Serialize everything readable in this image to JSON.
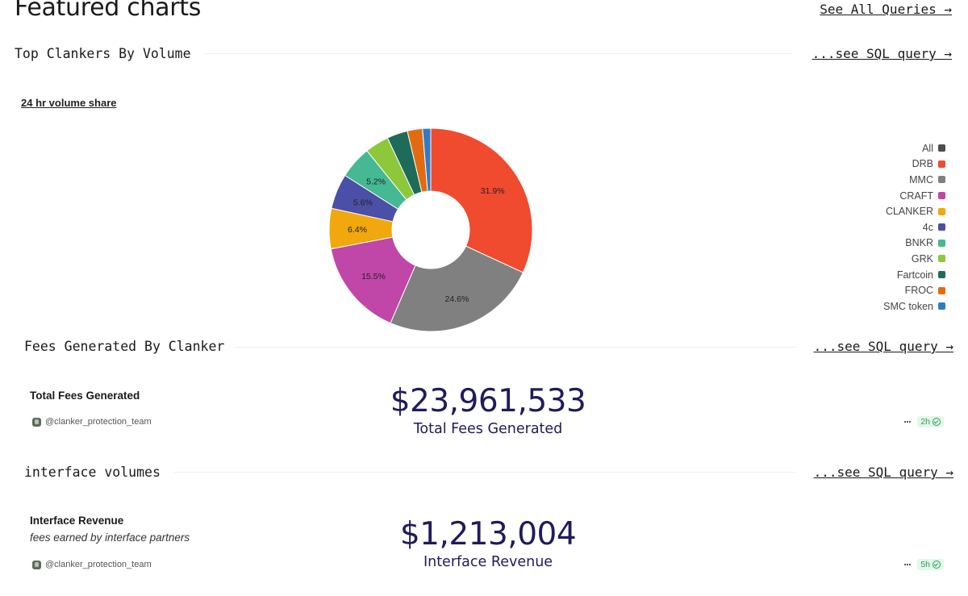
{
  "page": {
    "title": "Featured charts",
    "see_all_label": "See All Queries →"
  },
  "sections": [
    {
      "title": "Top Clankers By Volume",
      "sql_link": "...see SQL query →"
    },
    {
      "title": "Fees Generated By Clanker",
      "sql_link": "...see SQL query →",
      "card": {
        "title": "Total Fees Generated",
        "author": "@clanker_protection_team",
        "value": "$23,961,533",
        "value_label": "Total Fees Generated",
        "badge": "2h",
        "more": "···"
      }
    },
    {
      "title": "interface volumes",
      "sql_link": "...see SQL query →",
      "card": {
        "title": "Interface Revenue",
        "description": "fees earned by interface partners",
        "author": "@clanker_protection_team",
        "value": "$1,213,004",
        "value_label": "Interface Revenue",
        "badge": "5h",
        "more": "···"
      }
    }
  ],
  "chart_data": {
    "type": "pie",
    "title": "24 hr volume share",
    "donut": true,
    "legend_position": "right",
    "categories": [
      "All",
      "DRB",
      "MMC",
      "CRAFT",
      "CLANKER",
      "4c",
      "BNKR",
      "GRK",
      "Fartcoin",
      "FROC",
      "SMC token"
    ],
    "values": [
      0,
      31.9,
      24.6,
      15.5,
      6.4,
      5.6,
      5.2,
      3.8,
      3.3,
      2.4,
      1.3
    ],
    "labels": [
      "",
      "31.9%",
      "24.6%",
      "15.5%",
      "6.4%",
      "5.6%",
      "5.2%",
      "",
      "",
      "",
      ""
    ],
    "colors": [
      "#4a4d52",
      "#f04a2f",
      "#808080",
      "#c046a8",
      "#f0a80c",
      "#4b4fa6",
      "#45b894",
      "#8cc83a",
      "#1e6b5a",
      "#e26b12",
      "#2f7cc4"
    ],
    "unit": "%"
  }
}
